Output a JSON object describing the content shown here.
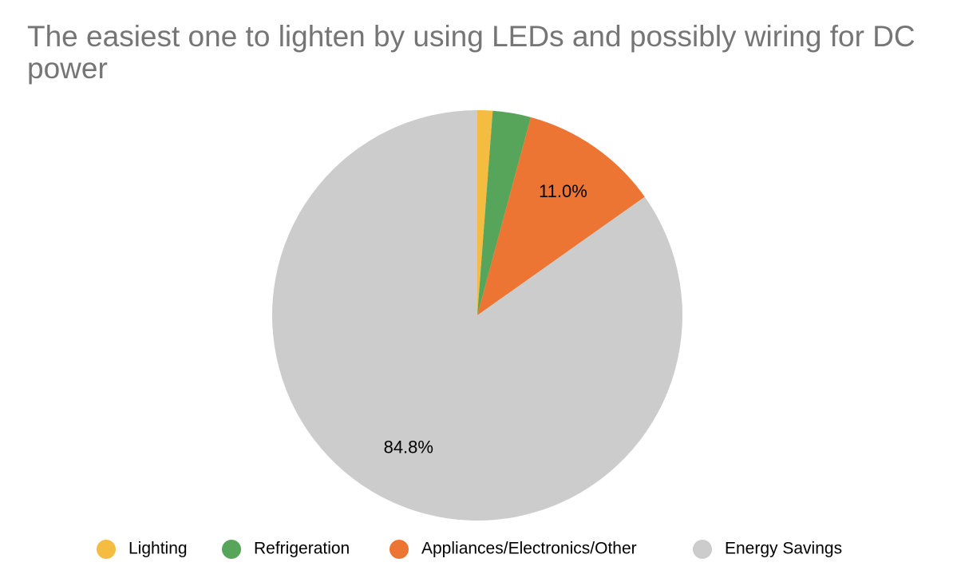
{
  "chart_data": {
    "type": "pie",
    "title": "The easiest one to lighten by using LEDs and possibly wiring for DC power",
    "categories": [
      "Lighting",
      "Refrigeration",
      "Appliances/Electronics/Other",
      "Energy Savings"
    ],
    "values": [
      1.2,
      3.0,
      11.0,
      84.8
    ],
    "value_labels": [
      null,
      null,
      "11.0%",
      "84.8%"
    ],
    "colors": [
      "#f4bd42",
      "#57a55a",
      "#ec7533",
      "#cccccc"
    ],
    "legend": "bottom"
  }
}
